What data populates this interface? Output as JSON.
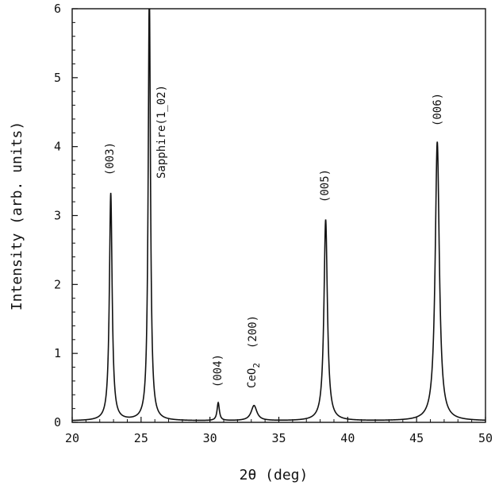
{
  "chart_data": {
    "type": "line",
    "title": "",
    "xlabel": "2θ (deg)",
    "ylabel": "Intensity (arb. units)",
    "xlim": [
      20,
      50
    ],
    "ylim": [
      0,
      6
    ],
    "x_ticks": [
      "20",
      "25",
      "30",
      "35",
      "40",
      "45",
      "50"
    ],
    "y_ticks": [
      "0",
      "1",
      "2",
      "3",
      "4",
      "5",
      "6"
    ],
    "grid": false,
    "legend": "none",
    "baseline": 0.02,
    "peaks": [
      {
        "label": "(003)",
        "x": 22.8,
        "y": 3.3,
        "width": 0.12
      },
      {
        "label": "Sapphire(1_02)",
        "x": 25.6,
        "y": 6.2,
        "width": 0.1
      },
      {
        "label": "(004)",
        "x": 30.6,
        "y": 0.26,
        "width": 0.1
      },
      {
        "label": "CeO2 (200)",
        "x": 33.2,
        "y": 0.22,
        "width": 0.25
      },
      {
        "label": "(005)",
        "x": 38.4,
        "y": 2.92,
        "width": 0.15
      },
      {
        "label": "(006)",
        "x": 46.5,
        "y": 4.05,
        "width": 0.18
      }
    ],
    "annotations": {
      "p003": "(003)",
      "sapphire": "Sapphire(1_02)",
      "p004": "(004)",
      "ceo2_base": "CeO",
      "ceo2_sub": "2",
      "ceo2_200": "(200)",
      "p005": "(005)",
      "p006": "(006)"
    },
    "line_color": "#111111"
  }
}
